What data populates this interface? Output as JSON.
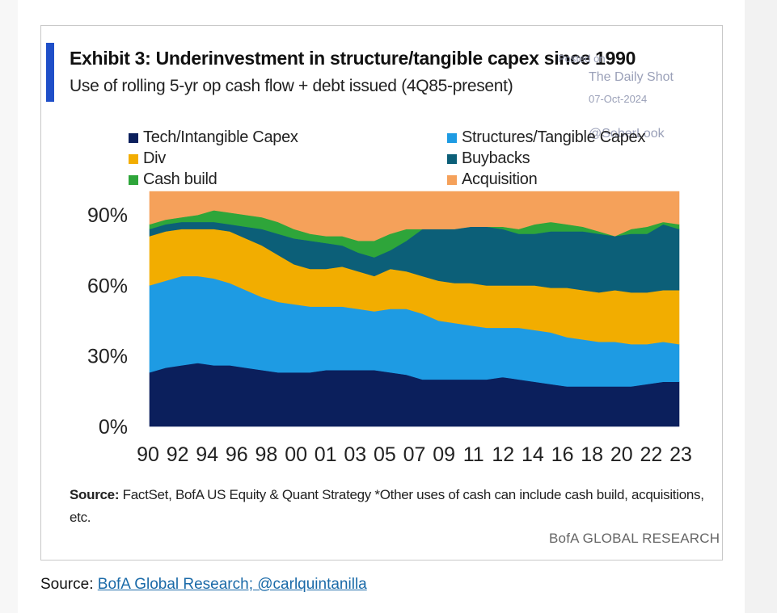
{
  "header": {
    "title": "Exhibit 3: Underinvestment in structure/tangible capex since 1990",
    "subtitle": "Use of rolling 5-yr op cash flow + debt issued (4Q85-present)"
  },
  "watermark": {
    "line1": "Posted on",
    "line2": "The Daily Shot",
    "date": "07-Oct-2024",
    "handle": "@SoberLook"
  },
  "colors": {
    "accent": "#1f4fc8",
    "tech": "#0b1f5c",
    "structures": "#1e9be3",
    "div": "#f2ad00",
    "buybacks": "#0c5f78",
    "cash_build": "#2ea53a",
    "acquisition": "#f5a15a"
  },
  "legend": [
    {
      "label": "Tech/Intangible Capex",
      "color": "#0b1f5c"
    },
    {
      "label": "Structures/Tangible Capex",
      "color": "#1e9be3"
    },
    {
      "label": "Div",
      "color": "#f2ad00"
    },
    {
      "label": "Buybacks",
      "color": "#0c5f78"
    },
    {
      "label": "Cash build",
      "color": "#2ea53a"
    },
    {
      "label": "Acquisition",
      "color": "#f5a15a"
    }
  ],
  "chart_data": {
    "type": "area",
    "stacked": true,
    "x": [
      1990,
      1991,
      1992,
      1993,
      1994,
      1995,
      1996,
      1997,
      1998,
      1999,
      2000,
      2001,
      2002,
      2003,
      2004,
      2005,
      2006,
      2007,
      2008,
      2009,
      2010,
      2011,
      2012,
      2013,
      2014,
      2015,
      2016,
      2017,
      2018,
      2019,
      2020,
      2021,
      2022,
      2023
    ],
    "x_tick_labels": [
      "90",
      "92",
      "94",
      "96",
      "98",
      "00",
      "01",
      "03",
      "05",
      "07",
      "09",
      "11",
      "12",
      "14",
      "16",
      "18",
      "20",
      "22",
      "23"
    ],
    "y_tick_labels": [
      "0%",
      "30%",
      "60%",
      "90%"
    ],
    "ylim": [
      0,
      100
    ],
    "series": [
      {
        "name": "Tech/Intangible Capex",
        "values": [
          23,
          25,
          26,
          27,
          26,
          26,
          25,
          24,
          23,
          23,
          23,
          24,
          24,
          24,
          24,
          23,
          22,
          20,
          20,
          20,
          20,
          20,
          21,
          20,
          19,
          18,
          17,
          17,
          17,
          17,
          17,
          18,
          19,
          19
        ]
      },
      {
        "name": "Structures/Tangible Capex",
        "values": [
          37,
          37,
          38,
          37,
          37,
          35,
          33,
          31,
          30,
          29,
          28,
          27,
          27,
          26,
          25,
          27,
          28,
          28,
          25,
          24,
          23,
          22,
          21,
          22,
          22,
          22,
          21,
          20,
          19,
          19,
          18,
          17,
          17,
          16
        ]
      },
      {
        "name": "Div",
        "values": [
          21,
          21,
          20,
          20,
          21,
          22,
          22,
          22,
          20,
          17,
          16,
          16,
          17,
          16,
          15,
          17,
          16,
          16,
          17,
          17,
          18,
          18,
          18,
          18,
          19,
          19,
          21,
          21,
          21,
          22,
          22,
          22,
          22,
          23
        ]
      },
      {
        "name": "Buybacks",
        "values": [
          3,
          3,
          3,
          3,
          3,
          3,
          5,
          7,
          9,
          11,
          12,
          11,
          9,
          8,
          8,
          8,
          13,
          20,
          22,
          23,
          24,
          25,
          24,
          22,
          22,
          24,
          24,
          25,
          25,
          23,
          25,
          25,
          28,
          26
        ]
      },
      {
        "name": "Cash build",
        "values": [
          2,
          2,
          2,
          3,
          5,
          5,
          5,
          5,
          5,
          4,
          3,
          3,
          4,
          5,
          7,
          7,
          5,
          0,
          0,
          0,
          0,
          0,
          1,
          2,
          4,
          4,
          3,
          2,
          1,
          0,
          2,
          3,
          1,
          2
        ]
      },
      {
        "name": "Acquisition",
        "values": [
          14,
          12,
          11,
          10,
          8,
          9,
          10,
          11,
          13,
          16,
          18,
          19,
          19,
          21,
          21,
          18,
          16,
          16,
          16,
          16,
          15,
          15,
          15,
          16,
          14,
          13,
          14,
          15,
          17,
          19,
          16,
          15,
          13,
          14
        ]
      }
    ]
  },
  "footnote": {
    "source_label": "Source:",
    "text": " FactSet, BofA US Equity & Quant Strategy *Other uses of cash can include cash build, acquisitions, etc."
  },
  "brand": "BofA GLOBAL RESEARCH",
  "page_source": {
    "label": "Source: ",
    "link_text": "BofA Global Research; @carlquintanilla"
  }
}
